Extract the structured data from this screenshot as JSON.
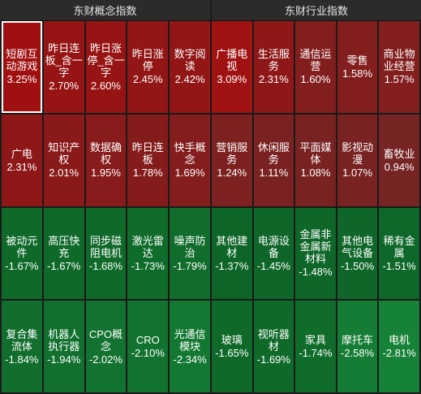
{
  "panels": [
    {
      "title": "东财概念指数",
      "cells": [
        {
          "name": "短剧互\n动游戏",
          "pct": "3.25%",
          "color": "#a01010",
          "selected": true
        },
        {
          "name": "昨日连\n板_含一\n字",
          "pct": "2.70%",
          "color": "#961414"
        },
        {
          "name": "昨日涨\n停_含一\n字",
          "pct": "2.60%",
          "color": "#961414"
        },
        {
          "name": "昨日涨\n停",
          "pct": "2.45%",
          "color": "#921616"
        },
        {
          "name": "数字阅\n读",
          "pct": "2.42%",
          "color": "#921616"
        },
        {
          "name": "广电",
          "pct": "2.31%",
          "color": "#8e1818"
        },
        {
          "name": "知识产\n权",
          "pct": "2.01%",
          "color": "#8a1a1a"
        },
        {
          "name": "数据确\n权",
          "pct": "1.95%",
          "color": "#881b1b"
        },
        {
          "name": "昨日连\n板",
          "pct": "1.78%",
          "color": "#851c1c"
        },
        {
          "name": "快手概\n念",
          "pct": "1.69%",
          "color": "#841d1d"
        },
        {
          "name": "被动元\n件",
          "pct": "-1.67%",
          "color": "#0f6a2a"
        },
        {
          "name": "高压快\n充",
          "pct": "-1.67%",
          "color": "#0f6a2a"
        },
        {
          "name": "同步磁\n阻电机",
          "pct": "-1.68%",
          "color": "#0f6a2a"
        },
        {
          "name": "激光雷\n达",
          "pct": "-1.73%",
          "color": "#106c2b"
        },
        {
          "name": "噪声防\n治",
          "pct": "-1.79%",
          "color": "#106d2c"
        },
        {
          "name": "复合集\n流体",
          "pct": "-1.84%",
          "color": "#116e2d"
        },
        {
          "name": "机器人\n执行器",
          "pct": "-1.94%",
          "color": "#11702e"
        },
        {
          "name": "CPO概\n念",
          "pct": "-2.02%",
          "color": "#12722f"
        },
        {
          "name": "CRO",
          "pct": "-2.10%",
          "color": "#127330"
        },
        {
          "name": "光通信\n模块",
          "pct": "-2.34%",
          "color": "#137832"
        }
      ]
    },
    {
      "title": "东财行业指数",
      "cells": [
        {
          "name": "广播电\n视",
          "pct": "3.09%",
          "color": "#a01212"
        },
        {
          "name": "生活服\n务",
          "pct": "2.31%",
          "color": "#8e1818"
        },
        {
          "name": "通信运\n营",
          "pct": "1.60%",
          "color": "#831e1e"
        },
        {
          "name": "零售",
          "pct": "1.58%",
          "color": "#831e1e"
        },
        {
          "name": "商业物\n业经营",
          "pct": "1.57%",
          "color": "#831e1e"
        },
        {
          "name": "营销服\n务",
          "pct": "1.24%",
          "color": "#7c2020"
        },
        {
          "name": "休闲服\n务",
          "pct": "1.11%",
          "color": "#7a2121"
        },
        {
          "name": "平面媒\n体",
          "pct": "1.08%",
          "color": "#792222"
        },
        {
          "name": "影视动\n漫",
          "pct": "1.07%",
          "color": "#792222"
        },
        {
          "name": "畜牧业",
          "pct": "0.94%",
          "color": "#762424"
        },
        {
          "name": "其他建\n材",
          "pct": "-1.37%",
          "color": "#0d6527"
        },
        {
          "name": "电源设\n备",
          "pct": "-1.45%",
          "color": "#0e6628"
        },
        {
          "name": "金属非\n金属新\n材料",
          "pct": "-1.48%",
          "color": "#0e6728"
        },
        {
          "name": "其他电\n气设备",
          "pct": "-1.50%",
          "color": "#0e6728"
        },
        {
          "name": "稀有金\n属",
          "pct": "-1.51%",
          "color": "#0e6829"
        },
        {
          "name": "玻璃",
          "pct": "-1.65%",
          "color": "#0f6a2a"
        },
        {
          "name": "视听器\n材",
          "pct": "-1.69%",
          "color": "#0f6a2a"
        },
        {
          "name": "家具",
          "pct": "-1.74%",
          "color": "#106c2b"
        },
        {
          "name": "摩托车",
          "pct": "-2.58%",
          "color": "#147c34"
        },
        {
          "name": "电机",
          "pct": "-2.81%",
          "color": "#168237"
        }
      ]
    }
  ]
}
